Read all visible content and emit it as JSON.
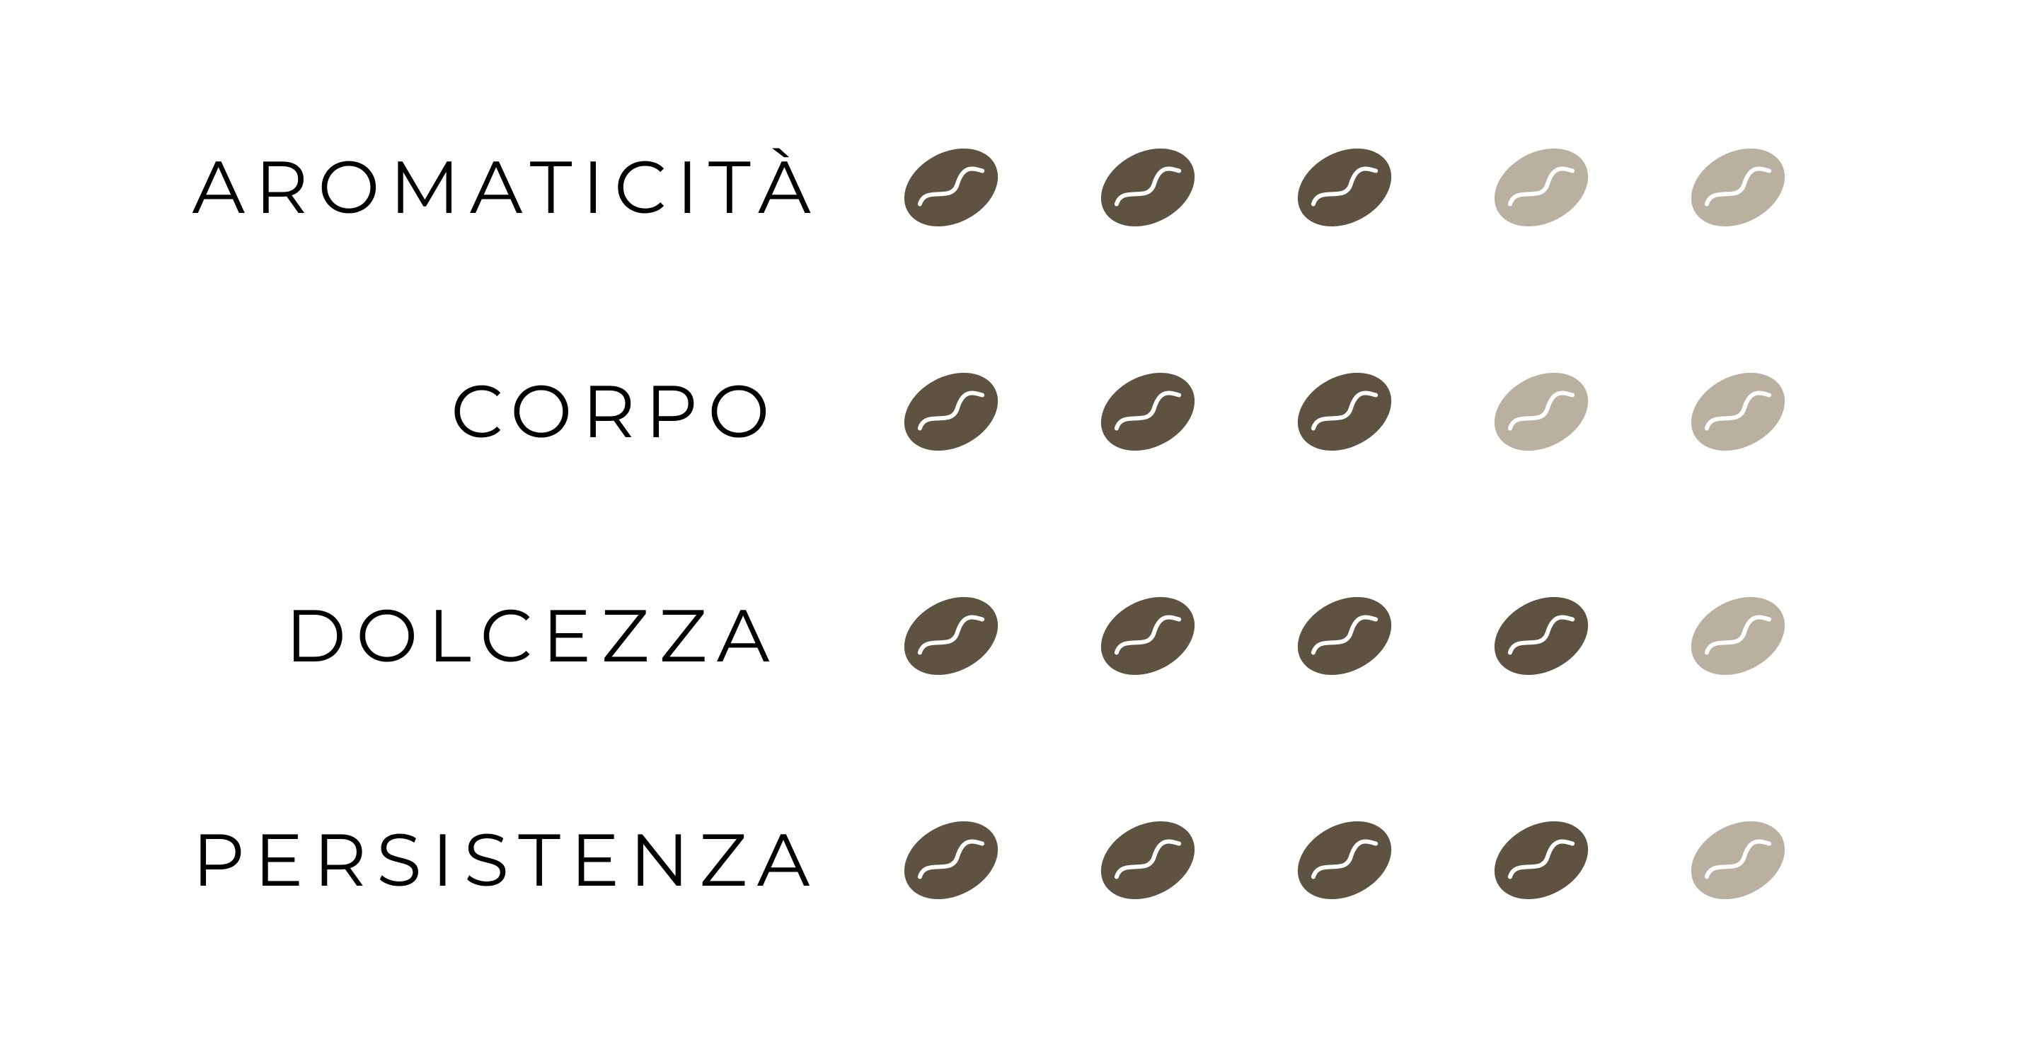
{
  "rating_chart": {
    "type": "infographic",
    "max_rating": 5,
    "filled_color": "#5e5340",
    "empty_color": "#b9b0a0",
    "crease_color": "#ffffff",
    "background_color": "#ffffff",
    "label_color": "#000000",
    "label_fontsize": 104,
    "label_letterspacing": 14,
    "label_fontweight": 400,
    "bean_width": 144,
    "bean_height": 124,
    "bean_gap": 134,
    "row_gap": 190,
    "attributes": [
      {
        "label": "AROMATICITÀ",
        "rating": 3
      },
      {
        "label": "CORPO",
        "rating": 3
      },
      {
        "label": "DOLCEZZA",
        "rating": 4
      },
      {
        "label": "PERSISTENZA",
        "rating": 4
      }
    ]
  }
}
